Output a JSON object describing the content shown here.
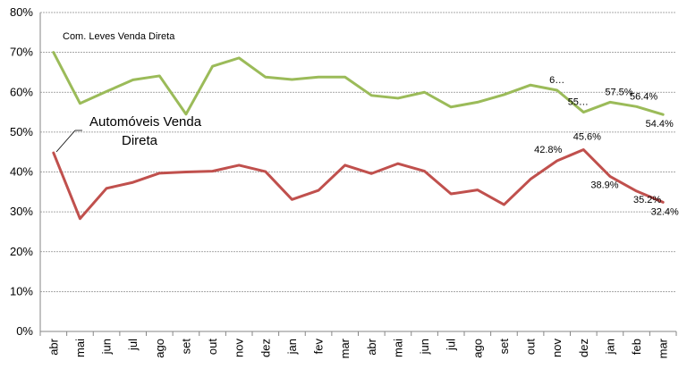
{
  "chart_data": {
    "type": "line",
    "categories": [
      "abr",
      "mai",
      "jun",
      "jul",
      "ago",
      "set",
      "out",
      "nov",
      "dez",
      "jan",
      "fev",
      "mar",
      "abr",
      "mai",
      "jun",
      "jul",
      "ago",
      "set",
      "out",
      "nov",
      "dez",
      "jan",
      "feb",
      "mar"
    ],
    "ylim": [
      0,
      80
    ],
    "yticks": [
      "0%",
      "10%",
      "20%",
      "30%",
      "40%",
      "50%",
      "60%",
      "70%",
      "80%"
    ],
    "grid": true,
    "series": [
      {
        "name": "Com. Leves Venda Direta",
        "color": "#9bbb59",
        "values": [
          70.0,
          57.2,
          60.2,
          63.1,
          64.1,
          54.5,
          66.5,
          68.6,
          63.8,
          63.2,
          63.8,
          63.8,
          59.2,
          58.5,
          60.0,
          56.3,
          57.5,
          59.4,
          61.8,
          60.5,
          55.0,
          57.5,
          56.4,
          54.4
        ],
        "data_labels": [
          {
            "index": 19,
            "text": "6…"
          },
          {
            "index": 20,
            "text": "55…"
          },
          {
            "index": 21,
            "text": "57.5%"
          },
          {
            "index": 22,
            "text": "56.4%"
          },
          {
            "index": 23,
            "text": "54.4%"
          }
        ]
      },
      {
        "name": "Automóveis Venda Direta",
        "color": "#c0504d",
        "values": [
          44.8,
          28.3,
          35.9,
          37.4,
          39.7,
          40.0,
          40.2,
          41.7,
          40.1,
          33.1,
          35.4,
          41.7,
          39.6,
          42.1,
          40.2,
          34.5,
          35.5,
          31.8,
          38.2,
          42.8,
          45.6,
          38.9,
          35.2,
          32.4
        ],
        "data_labels": [
          {
            "index": 19,
            "text": "42.8%"
          },
          {
            "index": 20,
            "text": "45.6%"
          },
          {
            "index": 21,
            "text": "38.9%"
          },
          {
            "index": 22,
            "text": "35.2%"
          },
          {
            "index": 23,
            "text": "32.4%"
          }
        ]
      }
    ],
    "annotations": {
      "green_series_label": "Com. Leves Venda Direta",
      "red_series_label_line1": "Automóveis Venda",
      "red_series_label_line2": "Direta"
    }
  }
}
